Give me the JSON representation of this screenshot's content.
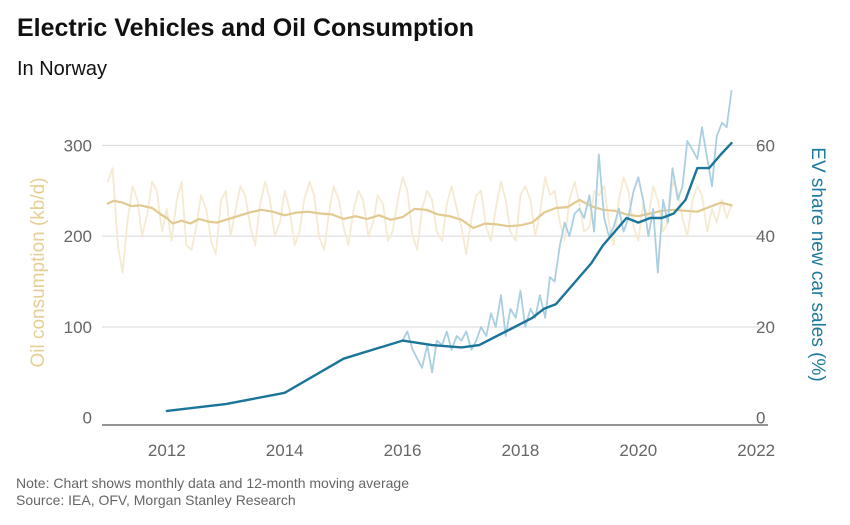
{
  "title": "Electric Vehicles and Oil Consumption",
  "subtitle": "In Norway",
  "notes": {
    "line1": "Note: Chart shows monthly data and 12-month moving average",
    "line2": "Source: IEA, OFV, Morgan Stanley Research"
  },
  "colors": {
    "oil_monthly": "#f5ead2",
    "oil_ma": "#e2c98f",
    "ev_monthly": "#a9cfe0",
    "ev_ma": "#1b7499",
    "left_axis_title": "#e6cf96",
    "right_axis_title": "#1f7a9e",
    "grid": "#d9d9d9",
    "axis_line": "#555555"
  },
  "chart_data": {
    "type": "line",
    "title": "Electric Vehicles and Oil Consumption",
    "subtitle": "In Norway",
    "ylabel": "Oil consumption (kb/d)",
    "y2label": "EV share new car sales (%)",
    "xlim": [
      2010.9,
      2022.2
    ],
    "ylim": [
      -8,
      350
    ],
    "y2lim": [
      -1.6,
      70
    ],
    "x_ticks": [
      2012,
      2014,
      2016,
      2018,
      2020,
      2022
    ],
    "y_ticks": [
      0,
      100,
      200,
      300
    ],
    "y2_ticks": [
      0,
      20,
      40,
      60
    ],
    "grid": true,
    "series": [
      {
        "axis": "left",
        "style": "monthly",
        "x": [
          2011.0,
          2011.08,
          2011.17,
          2011.25,
          2011.33,
          2011.42,
          2011.5,
          2011.58,
          2011.67,
          2011.75,
          2011.83,
          2011.92,
          2012.0,
          2012.08,
          2012.17,
          2012.25,
          2012.33,
          2012.42,
          2012.5,
          2012.58,
          2012.67,
          2012.75,
          2012.83,
          2012.92,
          2013.0,
          2013.08,
          2013.17,
          2013.25,
          2013.33,
          2013.42,
          2013.5,
          2013.58,
          2013.67,
          2013.75,
          2013.83,
          2013.92,
          2014.0,
          2014.08,
          2014.17,
          2014.25,
          2014.33,
          2014.42,
          2014.5,
          2014.58,
          2014.67,
          2014.75,
          2014.83,
          2014.92,
          2015.0,
          2015.08,
          2015.17,
          2015.25,
          2015.33,
          2015.42,
          2015.5,
          2015.58,
          2015.67,
          2015.75,
          2015.83,
          2015.92,
          2016.0,
          2016.08,
          2016.17,
          2016.25,
          2016.33,
          2016.42,
          2016.5,
          2016.58,
          2016.67,
          2016.75,
          2016.83,
          2016.92,
          2017.0,
          2017.08,
          2017.17,
          2017.25,
          2017.33,
          2017.42,
          2017.5,
          2017.58,
          2017.67,
          2017.75,
          2017.83,
          2017.92,
          2018.0,
          2018.08,
          2018.17,
          2018.25,
          2018.33,
          2018.42,
          2018.5,
          2018.58,
          2018.67,
          2018.75,
          2018.83,
          2018.92,
          2019.0,
          2019.08,
          2019.17,
          2019.25,
          2019.33,
          2019.42,
          2019.5,
          2019.58,
          2019.67,
          2019.75,
          2019.83,
          2019.92,
          2020.0,
          2020.08,
          2020.17,
          2020.25,
          2020.33,
          2020.42,
          2020.5,
          2020.58,
          2020.67,
          2020.75,
          2020.83,
          2020.92,
          2021.0,
          2021.08,
          2021.17,
          2021.25,
          2021.33,
          2021.42,
          2021.5,
          2021.58
        ],
        "values": [
          260,
          275,
          190,
          160,
          215,
          255,
          240,
          200,
          225,
          260,
          250,
          205,
          230,
          195,
          240,
          260,
          190,
          185,
          210,
          245,
          230,
          195,
          180,
          240,
          250,
          200,
          230,
          255,
          245,
          210,
          190,
          235,
          260,
          240,
          200,
          215,
          250,
          230,
          190,
          205,
          240,
          260,
          245,
          200,
          185,
          225,
          255,
          240,
          210,
          190,
          230,
          250,
          240,
          200,
          215,
          245,
          235,
          195,
          205,
          240,
          265,
          250,
          200,
          185,
          230,
          250,
          240,
          205,
          195,
          235,
          255,
          230,
          210,
          180,
          220,
          245,
          250,
          210,
          195,
          230,
          260,
          240,
          205,
          195,
          245,
          255,
          240,
          200,
          225,
          265,
          245,
          250,
          215,
          195,
          240,
          260,
          235,
          205,
          210,
          250,
          245,
          255,
          215,
          190,
          240,
          265,
          250,
          210,
          195,
          235,
          220,
          255,
          240,
          205,
          215,
          260,
          250,
          220,
          200,
          240,
          255,
          245,
          205,
          230,
          215,
          240,
          220,
          235
        ]
      },
      {
        "axis": "left",
        "style": "moving-average",
        "x": [
          2011.0,
          2011.1,
          2011.25,
          2011.4,
          2011.55,
          2011.75,
          2011.9,
          2012.0,
          2012.1,
          2012.25,
          2012.4,
          2012.55,
          2012.7,
          2012.85,
          2013.0,
          2013.2,
          2013.4,
          2013.6,
          2013.8,
          2014.0,
          2014.2,
          2014.4,
          2014.6,
          2014.8,
          2015.0,
          2015.2,
          2015.4,
          2015.6,
          2015.8,
          2016.0,
          2016.2,
          2016.4,
          2016.6,
          2016.8,
          2017.0,
          2017.2,
          2017.4,
          2017.6,
          2017.8,
          2018.0,
          2018.2,
          2018.4,
          2018.6,
          2018.8,
          2019.0,
          2019.2,
          2019.4,
          2019.6,
          2019.8,
          2020.0,
          2020.2,
          2020.4,
          2020.6,
          2020.8,
          2021.0,
          2021.2,
          2021.4,
          2021.58
        ],
        "values": [
          236,
          239,
          237,
          233,
          234,
          231,
          224,
          220,
          214,
          217,
          214,
          219,
          216,
          215,
          218,
          222,
          226,
          229,
          227,
          223,
          226,
          227,
          225,
          224,
          219,
          222,
          219,
          223,
          218,
          221,
          230,
          229,
          224,
          222,
          218,
          209,
          214,
          213,
          211,
          212,
          215,
          226,
          231,
          232,
          240,
          233,
          229,
          228,
          224,
          222,
          225,
          228,
          229,
          228,
          227,
          232,
          237,
          234
        ]
      },
      {
        "axis": "right",
        "style": "monthly",
        "x": [
          2016.0,
          2016.08,
          2016.17,
          2016.25,
          2016.33,
          2016.42,
          2016.5,
          2016.58,
          2016.67,
          2016.75,
          2016.83,
          2016.92,
          2017.0,
          2017.08,
          2017.17,
          2017.25,
          2017.33,
          2017.42,
          2017.5,
          2017.58,
          2017.67,
          2017.75,
          2017.83,
          2017.92,
          2018.0,
          2018.08,
          2018.17,
          2018.25,
          2018.33,
          2018.42,
          2018.5,
          2018.58,
          2018.67,
          2018.75,
          2018.83,
          2018.92,
          2019.0,
          2019.08,
          2019.17,
          2019.25,
          2019.33,
          2019.42,
          2019.5,
          2019.58,
          2019.67,
          2019.75,
          2019.83,
          2019.92,
          2020.0,
          2020.08,
          2020.17,
          2020.25,
          2020.33,
          2020.42,
          2020.5,
          2020.58,
          2020.67,
          2020.75,
          2020.83,
          2020.92,
          2021.0,
          2021.08,
          2021.17,
          2021.25,
          2021.33,
          2021.42,
          2021.5,
          2021.58
        ],
        "values": [
          17,
          19,
          15,
          13,
          11,
          16,
          10,
          17,
          16,
          19,
          15,
          18,
          17,
          19,
          15,
          17,
          20,
          18,
          23,
          20,
          27,
          18,
          24,
          22,
          28,
          20,
          24,
          22,
          27,
          22,
          31,
          30,
          38,
          43,
          40,
          45,
          46,
          44,
          49,
          41,
          58,
          44,
          40,
          42,
          46,
          41,
          44,
          50,
          53,
          48,
          40,
          46,
          32,
          48,
          43,
          55,
          48,
          51,
          61,
          59,
          57,
          64,
          57,
          51,
          62,
          65,
          64,
          72
        ]
      },
      {
        "axis": "right",
        "style": "moving-average",
        "x": [
          2012.0,
          2013.0,
          2014.0,
          2015.0,
          2016.0,
          2016.5,
          2017.0,
          2017.3,
          2017.6,
          2017.9,
          2018.2,
          2018.4,
          2018.6,
          2018.8,
          2019.0,
          2019.2,
          2019.4,
          2019.6,
          2019.8,
          2020.0,
          2020.2,
          2020.4,
          2020.6,
          2020.8,
          2021.0,
          2021.2,
          2021.4,
          2021.58
        ],
        "values": [
          1.5,
          3,
          5.5,
          13,
          17,
          16,
          15.5,
          16,
          18,
          20,
          22,
          24,
          25,
          28,
          31,
          34,
          38,
          41,
          44,
          43,
          44,
          44,
          45,
          48,
          55,
          55,
          58,
          60.5
        ]
      }
    ]
  }
}
